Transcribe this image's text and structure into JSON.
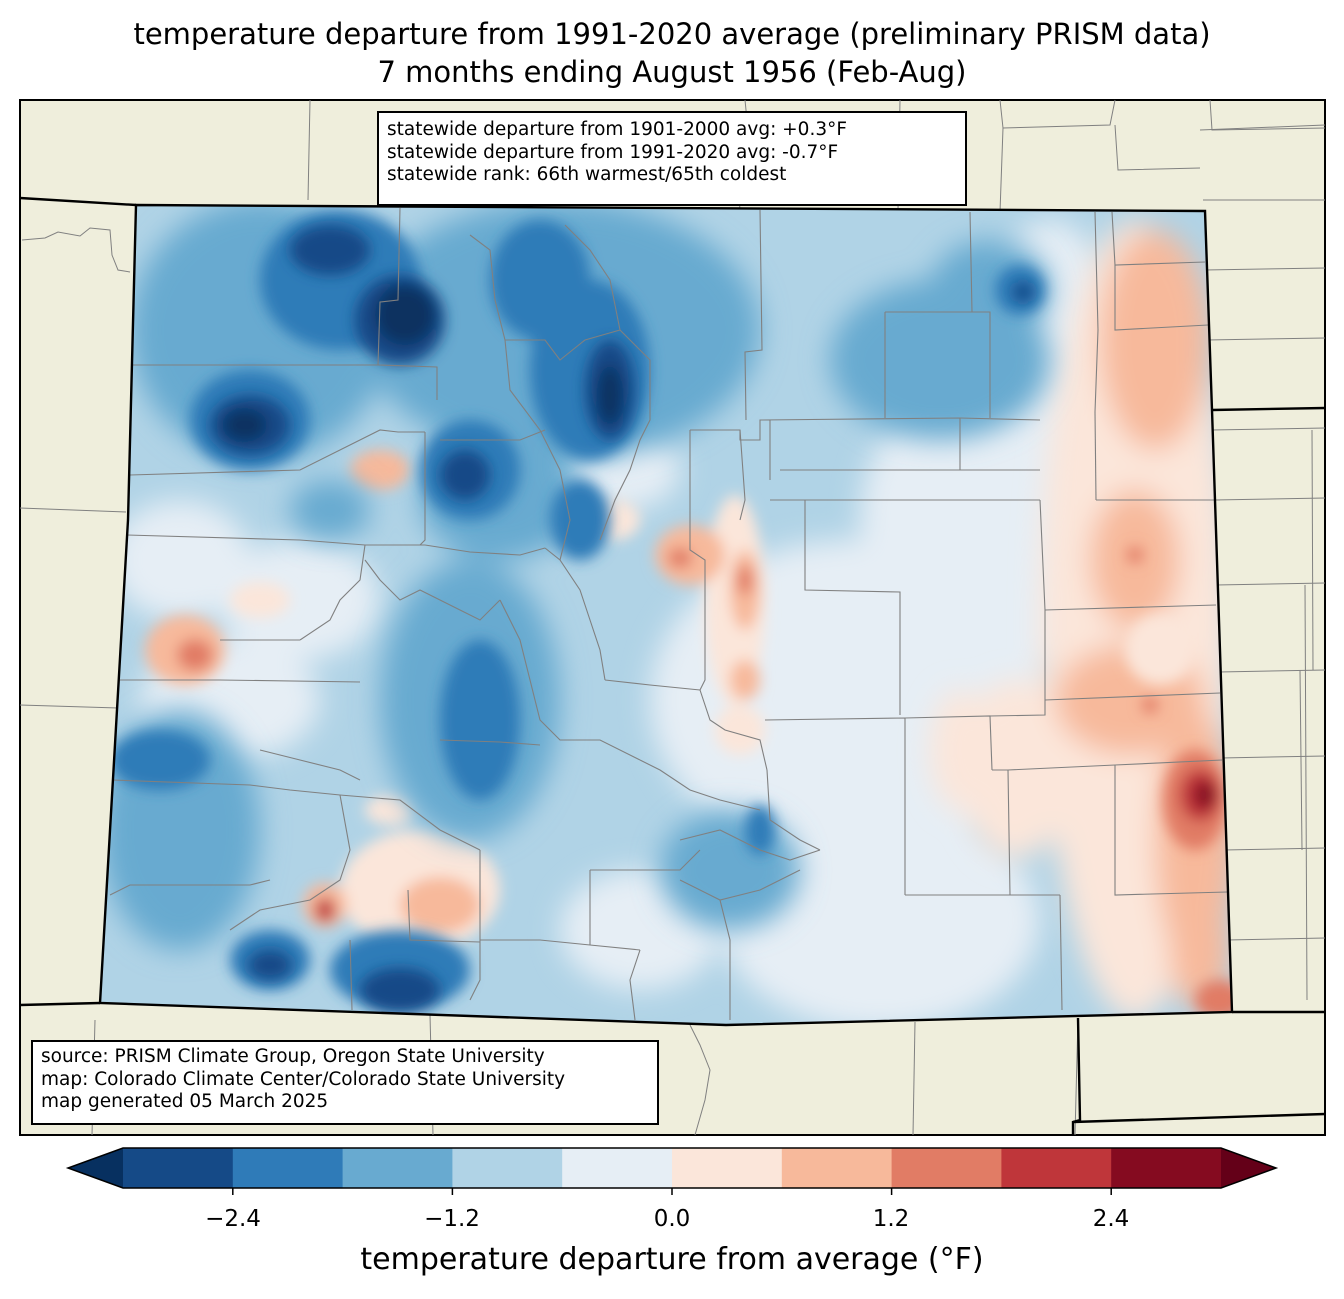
{
  "title": {
    "line1": "temperature departure from 1991-2020 average (preliminary PRISM data)",
    "line2": "7 months ending August 1956 (Feb-Aug)"
  },
  "stats": {
    "line1": "statewide departure from 1901-2000 avg: +0.3°F",
    "line2": "statewide departure from 1991-2020 avg: -0.7°F",
    "line3": "statewide rank: 66th warmest/65th coldest"
  },
  "source": {
    "line1": "source: PRISM Climate Group, Oregon State University",
    "line2": "map: Colorado Climate Center/Colorado State University",
    "line3": "map generated 05 March 2025"
  },
  "colorbar": {
    "label": "temperature departure from average (°F)",
    "ticks": [
      "−2.4",
      "−1.2",
      "0.0",
      "1.2",
      "2.4"
    ],
    "tick_values": [
      -2.4,
      -1.2,
      0.0,
      1.2,
      2.4
    ],
    "range": [
      -3.0,
      3.0
    ],
    "step": 0.6,
    "colors": [
      "#073060",
      "#154a87",
      "#2f7bb8",
      "#68aad0",
      "#b0d3e6",
      "#e6eef5",
      "#fbe6da",
      "#f7b99b",
      "#e17c65",
      "#bf363a",
      "#850b20",
      "#640018"
    ]
  },
  "map_colors": {
    "land": "#efeedc",
    "state_border": "#000000",
    "county_border": "#808080"
  }
}
